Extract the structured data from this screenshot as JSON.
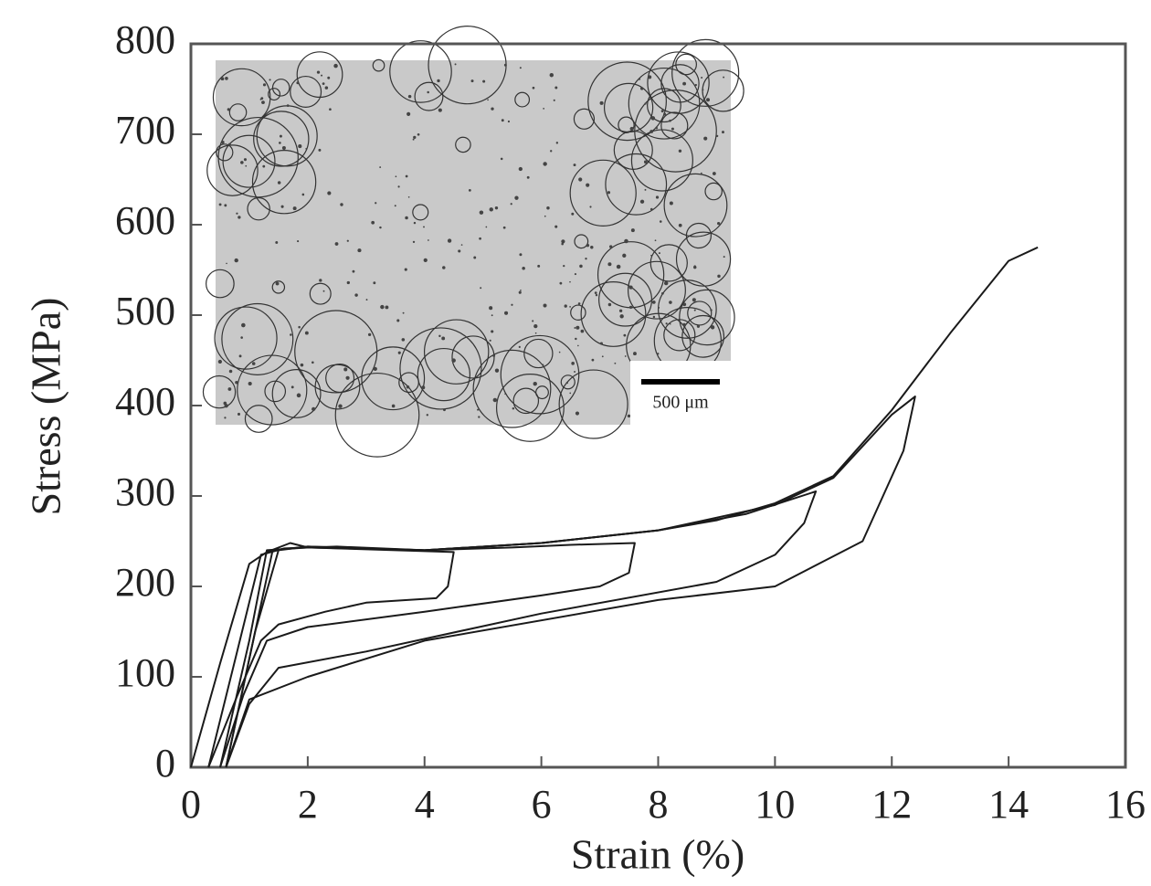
{
  "chart_data": {
    "type": "line",
    "x_label": "Strain (%)",
    "y_label": "Stress (MPa)",
    "xlim": [
      0,
      16
    ],
    "ylim": [
      0,
      800
    ],
    "xticks": [
      0,
      2,
      4,
      6,
      8,
      10,
      12,
      14,
      16
    ],
    "yticks": [
      0,
      100,
      200,
      300,
      400,
      500,
      600,
      700,
      800
    ],
    "grid": false,
    "inset_scale_label": "500 μm",
    "series": [
      {
        "color": "#1a1a1a",
        "x": [
          0,
          0.5,
          1.0,
          1.3,
          1.7,
          2.0,
          3.0,
          4.0,
          4.5,
          4.4,
          4.2,
          3.0,
          2.3,
          1.5,
          1.2,
          0.8,
          0.3
        ],
        "values": [
          0,
          115,
          225,
          238,
          248,
          243,
          241,
          239,
          238,
          200,
          187,
          182,
          172,
          158,
          140,
          80,
          0
        ]
      },
      {
        "color": "#1a1a1a",
        "x": [
          0.3,
          0.8,
          1.2,
          1.6,
          2.5,
          4.0,
          5.5,
          6.5,
          7.6,
          7.5,
          7.0,
          6.0,
          4.0,
          2.0,
          1.3,
          0.9,
          0.5
        ],
        "values": [
          0,
          130,
          235,
          242,
          244,
          240,
          243,
          246,
          248,
          215,
          200,
          190,
          172,
          155,
          140,
          80,
          0
        ]
      },
      {
        "color": "#1a1a1a",
        "x": [
          0.5,
          1.0,
          1.3,
          2.0,
          4.0,
          6.0,
          8.0,
          9.5,
          10.7,
          10.5,
          10.0,
          9.0,
          6.0,
          3.0,
          1.5,
          1.0,
          0.6
        ],
        "values": [
          0,
          140,
          240,
          243,
          240,
          248,
          262,
          280,
          305,
          270,
          235,
          205,
          170,
          128,
          110,
          70,
          0
        ]
      },
      {
        "color": "#1a1a1a",
        "x": [
          0.6,
          1.1,
          1.4,
          2.0,
          4.0,
          6.0,
          8.0,
          10.0,
          11.0,
          12.0,
          12.4,
          12.2,
          11.5,
          10.0,
          8.0,
          4.0,
          2.0,
          1.0,
          0.6
        ],
        "values": [
          0,
          150,
          240,
          244,
          240,
          248,
          262,
          290,
          320,
          390,
          410,
          350,
          250,
          200,
          185,
          140,
          100,
          75,
          0
        ]
      },
      {
        "color": "#1a1a1a",
        "x": [
          0.6,
          1.1,
          1.5,
          2.0,
          4.0,
          6.0,
          8.0,
          9.0,
          10.0,
          11.0,
          12.0,
          13.0,
          14.0,
          14.5
        ],
        "values": [
          0,
          150,
          240,
          244,
          240,
          248,
          262,
          273,
          292,
          322,
          395,
          480,
          560,
          575
        ]
      }
    ]
  }
}
